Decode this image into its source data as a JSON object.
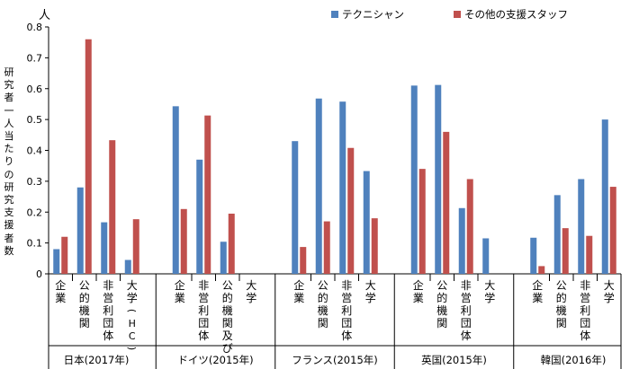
{
  "chart_data": {
    "type": "bar",
    "unit": "人",
    "ylabel": "研究者一人当たりの研究支援者数",
    "ylim": [
      0,
      0.8
    ],
    "yticks": [
      "0",
      "0.1",
      "0.2",
      "0.3",
      "0.4",
      "0.5",
      "0.6",
      "0.7",
      "0.8"
    ],
    "grid": false,
    "legend_position": "top",
    "series": [
      {
        "name": "テクニシャン",
        "color": "#4f81bd"
      },
      {
        "name": "その他の支援スタッフ",
        "color": "#c0504d"
      }
    ],
    "groups": [
      {
        "label": "日本(2017年)",
        "categories": [
          {
            "label": "企業",
            "values": [
              0.08,
              0.12
            ]
          },
          {
            "label": "公的機関",
            "values": [
              0.28,
              0.76
            ]
          },
          {
            "label": "非営利団体",
            "values": [
              0.167,
              0.433
            ]
          },
          {
            "label": "大学(HC)",
            "values": [
              0.045,
              0.177
            ]
          }
        ]
      },
      {
        "label": "ドイツ(2015年)",
        "categories": [
          {
            "label": "企業",
            "values": [
              0.543,
              0.21
            ]
          },
          {
            "label": "非営利団体",
            "values": [
              0.37,
              0.513
            ]
          },
          {
            "label": "公的機関及び",
            "values": [
              0.104,
              0.195
            ]
          },
          {
            "label": "大学",
            "values": [
              null,
              null
            ]
          }
        ]
      },
      {
        "label": "フランス(2015年)",
        "categories": [
          {
            "label": "企業",
            "values": [
              0.43,
              0.087
            ]
          },
          {
            "label": "公的機関",
            "values": [
              0.568,
              0.17
            ]
          },
          {
            "label": "非営利団体",
            "values": [
              0.558,
              0.408
            ]
          },
          {
            "label": "大学",
            "values": [
              0.333,
              0.18
            ]
          }
        ]
      },
      {
        "label": "英国(2015年)",
        "categories": [
          {
            "label": "企業",
            "values": [
              0.61,
              0.34
            ]
          },
          {
            "label": "公的機関",
            "values": [
              0.612,
              0.46
            ]
          },
          {
            "label": "非営利団体",
            "values": [
              0.213,
              0.307
            ]
          },
          {
            "label": "大学",
            "values": [
              0.115,
              null
            ]
          }
        ]
      },
      {
        "label": "韓国(2016年)",
        "categories": [
          {
            "label": "企業",
            "values": [
              0.117,
              0.025
            ]
          },
          {
            "label": "公的機関",
            "values": [
              0.255,
              0.148
            ]
          },
          {
            "label": "非営利団体",
            "values": [
              0.307,
              0.123
            ]
          },
          {
            "label": "大学",
            "values": [
              0.5,
              0.282
            ]
          }
        ]
      }
    ]
  }
}
